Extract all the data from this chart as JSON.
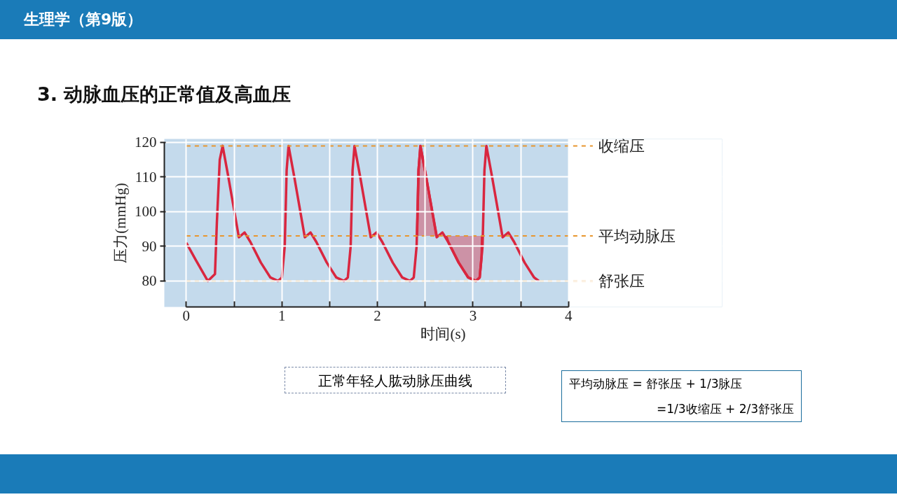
{
  "chart_data": {
    "type": "line",
    "title": "3. 动脉血压的正常值及高血压",
    "subtitle": "生理学（第9版）",
    "xlabel": "时间(s)",
    "ylabel": "压力(mmHg)",
    "x": [
      0,
      0.1,
      0.225,
      0.3,
      0.32,
      0.35,
      0.38,
      0.44,
      0.55,
      0.61,
      0.67,
      0.78,
      0.88,
      0.96,
      1.0,
      1.03,
      1.05,
      1.07,
      1.13,
      1.24,
      1.3,
      1.36,
      1.47,
      1.57,
      1.65,
      1.69,
      1.72,
      1.74,
      1.76,
      1.82,
      1.93,
      1.99,
      2.05,
      2.16,
      2.26,
      2.34,
      2.38,
      2.41,
      2.43,
      2.45,
      2.51,
      2.62,
      2.68,
      2.74,
      2.85,
      2.95,
      3.03,
      3.07,
      3.1,
      3.12,
      3.14,
      3.2,
      3.31,
      3.37,
      3.43,
      3.54,
      3.64,
      3.69
    ],
    "series": [
      {
        "color": "#d9263f",
        "values": [
          91,
          86,
          80,
          82,
          97,
          115,
          119,
          110,
          92.6,
          94,
          91.3,
          85.3,
          81,
          80,
          81,
          90,
          112,
          119,
          110,
          92.6,
          94,
          91.3,
          85.3,
          81,
          80,
          81,
          90,
          112,
          119,
          110,
          92.6,
          94,
          91.3,
          85.3,
          81,
          80,
          81,
          90,
          112,
          119,
          110,
          92.6,
          94,
          91.3,
          85.3,
          81,
          80,
          81,
          90,
          112,
          119,
          110,
          92.6,
          94,
          91.3,
          85.3,
          81,
          80
        ]
      },
      {
        "color": "#d9263f",
        "x": [
          2.415,
          2.43,
          2.45,
          2.51,
          2.62
        ],
        "values": [
          93,
          112,
          119,
          110,
          93
        ],
        "lower": [
          93,
          93,
          93,
          93,
          93
        ],
        "upper": [
          93,
          112,
          119,
          110,
          93
        ]
      },
      {
        "color": "#d9263f",
        "x": [
          2.72,
          2.74,
          2.85,
          2.95,
          3.03,
          3.07,
          3.09,
          3.095
        ],
        "values": [
          93,
          91.3,
          85.3,
          81,
          80,
          81,
          87,
          93
        ],
        "lower": [
          93,
          91.3,
          85.3,
          81,
          80,
          81,
          87,
          93
        ],
        "upper": [
          93,
          93,
          93,
          93,
          93,
          93,
          93,
          93
        ]
      }
    ],
    "xlim": [
      -0.23,
      4
    ],
    "ylim": [
      72.5,
      121
    ],
    "xticks": [
      0,
      {
        "value": 0.5,
        "label": null
      },
      1,
      {
        "value": 1.5,
        "label": null
      },
      2,
      {
        "value": 2.5,
        "label": null
      },
      3,
      {
        "value": 3.5,
        "label": null
      },
      4
    ],
    "yticks": [
      80,
      90,
      100,
      110,
      120
    ],
    "grid": true,
    "line_style": "solid",
    "ref_lines": [
      {
        "axis": "y",
        "value": 119,
        "label": "收缩压",
        "color": "#e8962e",
        "line_style": "dashed"
      },
      {
        "axis": "y",
        "value": 93,
        "label": "平均动脉压",
        "color": "#e8962e",
        "line_style": "dashed"
      },
      {
        "axis": "y",
        "value": 80,
        "label": "舒张压",
        "color": "#e8962e",
        "line_style": "dashed"
      }
    ],
    "annotations": [
      "正常年轻人肱动脉压曲线",
      "平均动脉压 = 舒张压 + 1/3脉压",
      "=1/3收缩压 + 2/3舒张压"
    ]
  }
}
